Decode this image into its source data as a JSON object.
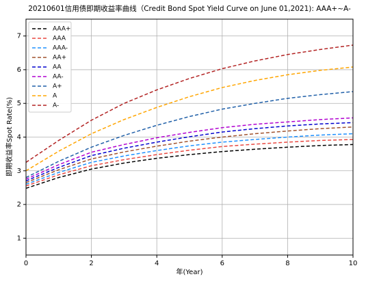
{
  "chart_data": {
    "type": "line",
    "title": "20210601信用债即期收益率曲线（Credit Bond Spot Yield Curve on June 01,2021): AAA+~A-",
    "xlabel": "年(Year)",
    "ylabel": "即期收益率Spot Rate(%)",
    "x": [
      0,
      1,
      2,
      3,
      4,
      5,
      6,
      7,
      8,
      9,
      10
    ],
    "series": [
      {
        "name": "AAA+",
        "color": "#000000",
        "values": [
          2.48,
          2.8,
          3.05,
          3.23,
          3.37,
          3.48,
          3.57,
          3.64,
          3.7,
          3.75,
          3.78
        ]
      },
      {
        "name": "AAA",
        "color": "#e8473f",
        "values": [
          2.55,
          2.88,
          3.15,
          3.33,
          3.48,
          3.61,
          3.72,
          3.79,
          3.85,
          3.9,
          3.93
        ]
      },
      {
        "name": "AAA-",
        "color": "#1e90ff",
        "values": [
          2.6,
          2.95,
          3.25,
          3.44,
          3.6,
          3.74,
          3.85,
          3.93,
          4.0,
          4.06,
          4.1
        ]
      },
      {
        "name": "AA+",
        "color": "#a0522d",
        "values": [
          2.65,
          3.03,
          3.35,
          3.56,
          3.73,
          3.88,
          4.0,
          4.1,
          4.18,
          4.25,
          4.3
        ]
      },
      {
        "name": "AA",
        "color": "#0000cd",
        "values": [
          2.7,
          3.1,
          3.45,
          3.67,
          3.85,
          4.01,
          4.15,
          4.25,
          4.33,
          4.39,
          4.43
        ]
      },
      {
        "name": "AA-",
        "color": "#b000d0",
        "values": [
          2.75,
          3.18,
          3.55,
          3.78,
          3.98,
          4.14,
          4.28,
          4.38,
          4.45,
          4.52,
          4.57
        ]
      },
      {
        "name": "A+",
        "color": "#1f5fa8",
        "values": [
          2.8,
          3.28,
          3.7,
          4.05,
          4.35,
          4.61,
          4.83,
          5.0,
          5.15,
          5.26,
          5.35
        ]
      },
      {
        "name": "A",
        "color": "#ffa500",
        "values": [
          3.0,
          3.58,
          4.1,
          4.52,
          4.88,
          5.2,
          5.47,
          5.68,
          5.85,
          5.98,
          6.08
        ]
      },
      {
        "name": "A-",
        "color": "#b22222",
        "values": [
          3.25,
          3.9,
          4.5,
          5.0,
          5.4,
          5.74,
          6.03,
          6.26,
          6.45,
          6.6,
          6.73
        ]
      }
    ],
    "xlim": [
      0,
      10
    ],
    "xticks": [
      0,
      2,
      4,
      6,
      8,
      10
    ],
    "ylim": [
      0.5,
      7.5
    ],
    "yticks": [
      1,
      2,
      3,
      4,
      5,
      6,
      7
    ],
    "grid": true,
    "legend": "upper-left"
  }
}
